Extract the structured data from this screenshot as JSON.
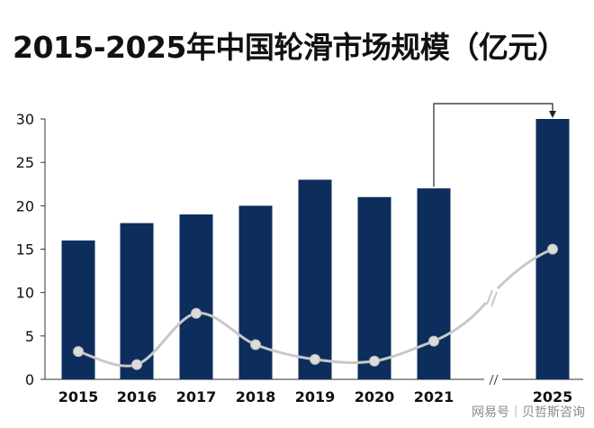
{
  "title": "2015-2025年中国轮滑市场规模（亿元）",
  "watermark": "网易号｜贝哲斯咨询",
  "colors": {
    "bar": "#0d2e5c",
    "line": "#c8c8c8",
    "axis": "#333333"
  },
  "chart_data": {
    "type": "bar",
    "title": "2015-2025年中国轮滑市场规模（亿元）",
    "xlabel": "",
    "ylabel": "",
    "categories": [
      "2015",
      "2016",
      "2017",
      "2018",
      "2019",
      "2020",
      "2021",
      "2025"
    ],
    "values": [
      16,
      18,
      19,
      20,
      23,
      21,
      22,
      30
    ],
    "ylim": [
      0,
      30
    ],
    "yticks": [
      0,
      5,
      10,
      15,
      20,
      25,
      30
    ],
    "grid": false,
    "axis_break": "between 2021 and 2025",
    "growth_line": {
      "type": "line",
      "values": [
        3.2,
        1.7,
        7.6,
        4.0,
        2.3,
        2.1,
        4.4,
        15.0
      ]
    },
    "annotation": "arrow from 2021 to 2025"
  }
}
